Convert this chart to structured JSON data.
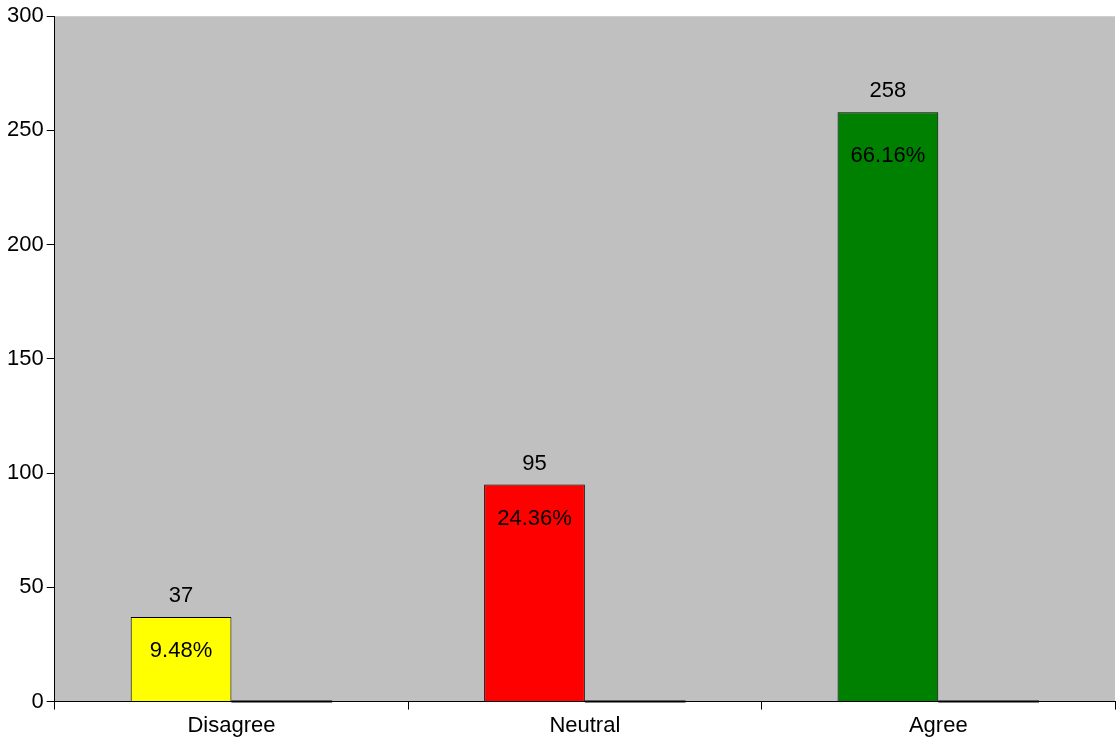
{
  "chart_data": {
    "type": "bar",
    "categories": [
      "Disagree",
      "Neutral",
      "Agree"
    ],
    "series": [
      {
        "colors": [
          "#ffff00",
          "#ff0000",
          "#008000"
        ],
        "values": [
          37,
          95,
          258
        ],
        "value_labels": [
          "37",
          "95",
          "258"
        ]
      },
      {
        "color": "#000000",
        "values": [
          0,
          0,
          0
        ]
      }
    ],
    "annotations": [
      {
        "text": "9.48%",
        "x": "Disagree",
        "y": 22
      },
      {
        "text": "24.36%",
        "x": "Neutral",
        "y": 80
      },
      {
        "text": "66.16%",
        "x": "Agree",
        "y": 239
      }
    ],
    "ylim": [
      0,
      300
    ],
    "yticks": [
      0,
      50,
      100,
      150,
      200,
      250,
      300
    ],
    "grid": false,
    "legend": false
  }
}
